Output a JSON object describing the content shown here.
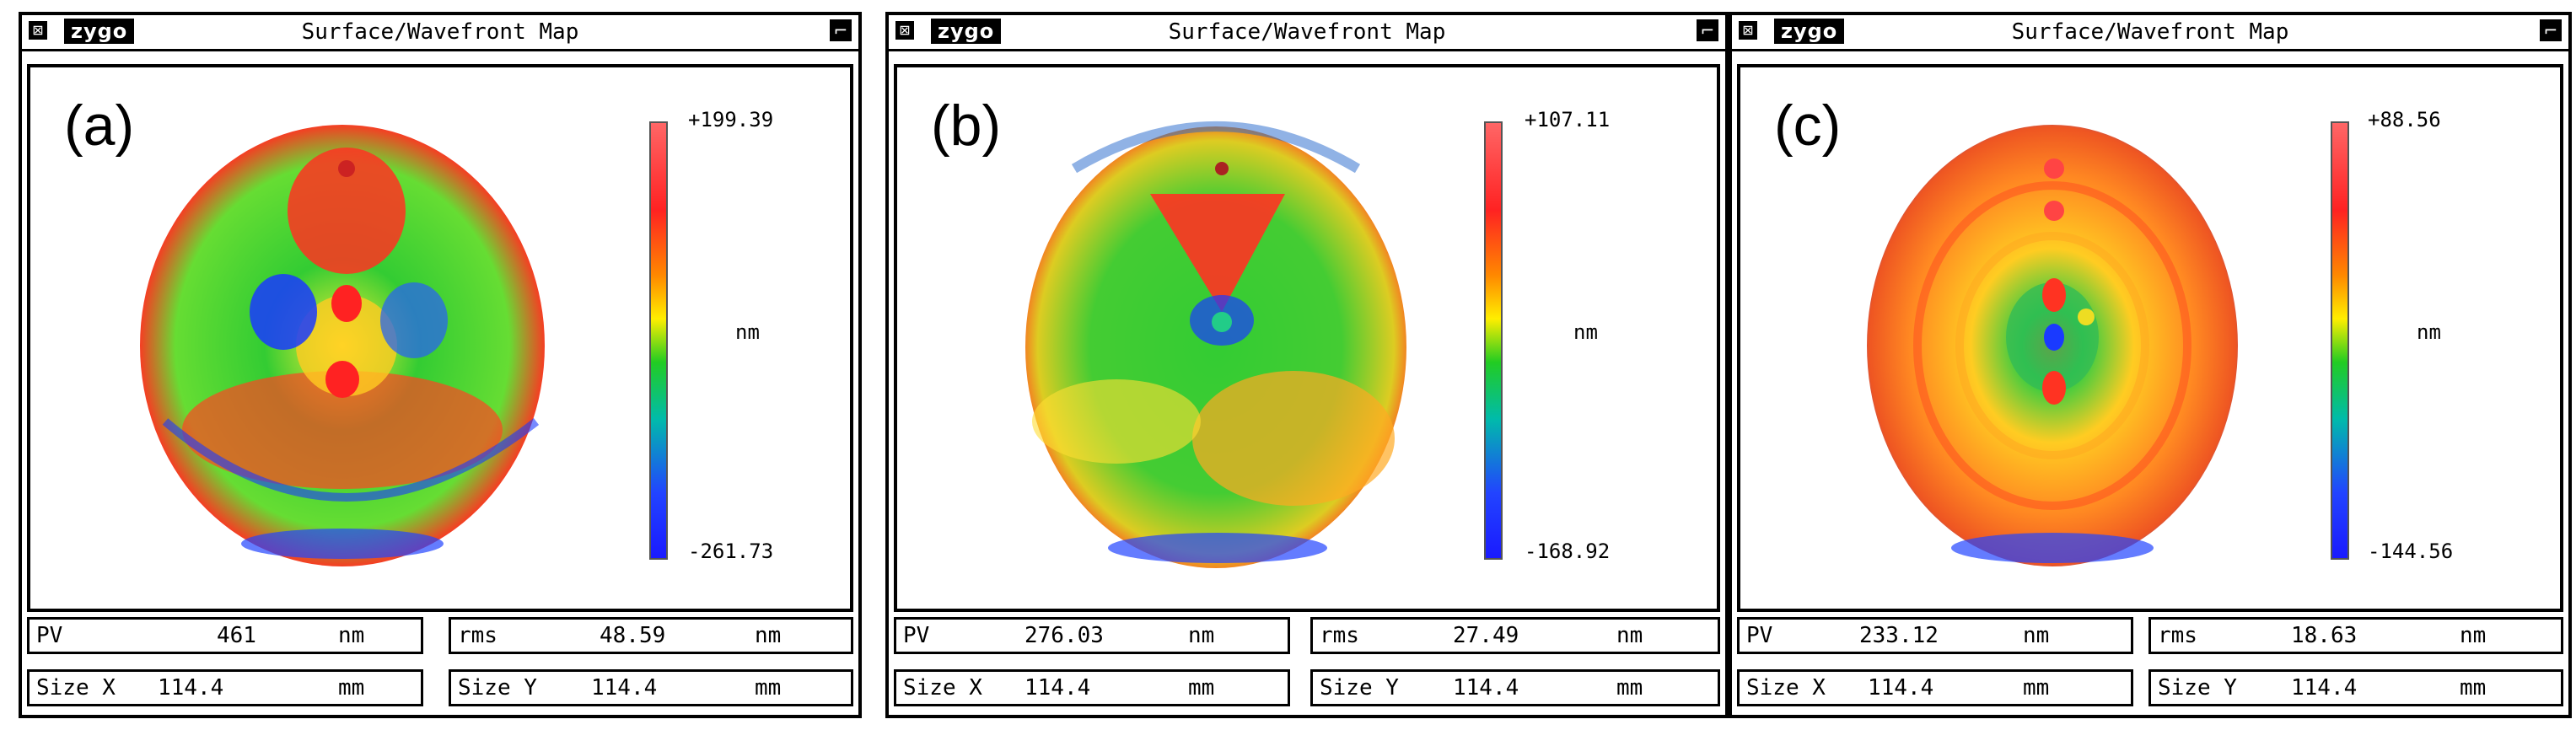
{
  "panels": [
    {
      "close_glyph": "⊠",
      "logo": "zygo",
      "title": "Surface/Wavefront Map",
      "menu_glyph": "⌐",
      "label": "(a)",
      "colorbar": {
        "max": "+199.39",
        "min": "-261.73",
        "unit": "nm"
      },
      "pv": {
        "label": "PV",
        "value": "461",
        "unit": "nm"
      },
      "rms": {
        "label": "rms",
        "value": "48.59",
        "unit": "nm"
      },
      "size_x": {
        "label": "Size X",
        "value": "114.4",
        "unit": "mm"
      },
      "size_y": {
        "label": "Size Y",
        "value": "114.4",
        "unit": "mm"
      }
    },
    {
      "close_glyph": "⊠",
      "logo": "zygo",
      "title": "Surface/Wavefront Map",
      "menu_glyph": "⌐",
      "label": "(b)",
      "colorbar": {
        "max": "+107.11",
        "min": "-168.92",
        "unit": "nm"
      },
      "pv": {
        "label": "PV",
        "value": "276.03",
        "unit": "nm"
      },
      "rms": {
        "label": "rms",
        "value": "27.49",
        "unit": "nm"
      },
      "size_x": {
        "label": "Size X",
        "value": "114.4",
        "unit": "mm"
      },
      "size_y": {
        "label": "Size Y",
        "value": "114.4",
        "unit": "mm"
      }
    },
    {
      "close_glyph": "⊠",
      "logo": "zygo",
      "title": "Surface/Wavefront Map",
      "menu_glyph": "⌐",
      "label": "(c)",
      "colorbar": {
        "max": "+88.56",
        "min": "-144.56",
        "unit": "nm"
      },
      "pv": {
        "label": "PV",
        "value": "233.12",
        "unit": "nm"
      },
      "rms": {
        "label": "rms",
        "value": "18.63",
        "unit": "nm"
      },
      "size_x": {
        "label": "Size X",
        "value": "114.4",
        "unit": "mm"
      },
      "size_y": {
        "label": "Size Y",
        "value": "114.4",
        "unit": "mm"
      }
    }
  ],
  "colors": {
    "high": "#ff5a5a",
    "mid": "#22cc22",
    "low": "#1a1aff",
    "frame": "#000000"
  }
}
